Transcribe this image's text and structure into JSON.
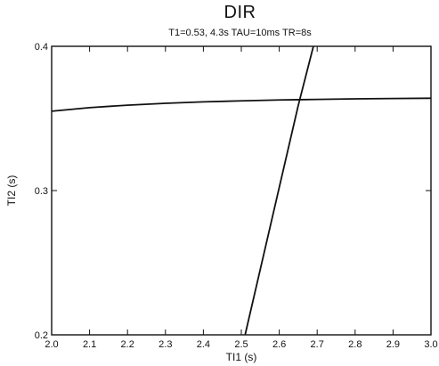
{
  "chart_data": {
    "type": "line",
    "title": "DIR",
    "subtitle": "T1=0.53, 4.3s TAU=10ms TR=8s",
    "xlabel": "TI1 (s)",
    "ylabel": "TI2 (s)",
    "xlim": [
      2.0,
      3.0
    ],
    "ylim": [
      0.2,
      0.4
    ],
    "xticks": [
      2.0,
      2.1,
      2.2,
      2.3,
      2.4,
      2.5,
      2.6,
      2.7,
      2.8,
      2.9,
      3.0
    ],
    "xtick_labels": [
      "2.0",
      "2.1",
      "2.2",
      "2.3",
      "2.4",
      "2.5",
      "2.6",
      "2.7",
      "2.8",
      "2.9",
      "3.0"
    ],
    "yticks": [
      0.2,
      0.3,
      0.4
    ],
    "ytick_labels": [
      "0.2",
      "0.3",
      "0.4"
    ],
    "grid": false,
    "legend": "none",
    "line_color": "#111111",
    "series": [
      {
        "x": [
          2.0,
          2.1,
          2.2,
          2.3,
          2.4,
          2.5,
          2.6,
          2.65,
          2.7,
          2.8,
          2.9,
          3.0
        ],
        "y": [
          0.355,
          0.3575,
          0.3592,
          0.3605,
          0.3615,
          0.3622,
          0.3628,
          0.363,
          0.3632,
          0.3636,
          0.3638,
          0.364
        ]
      },
      {
        "x": [
          2.51,
          2.55,
          2.6,
          2.65,
          2.69
        ],
        "y": [
          0.2,
          0.2454,
          0.3022,
          0.3589,
          0.4
        ]
      }
    ]
  }
}
